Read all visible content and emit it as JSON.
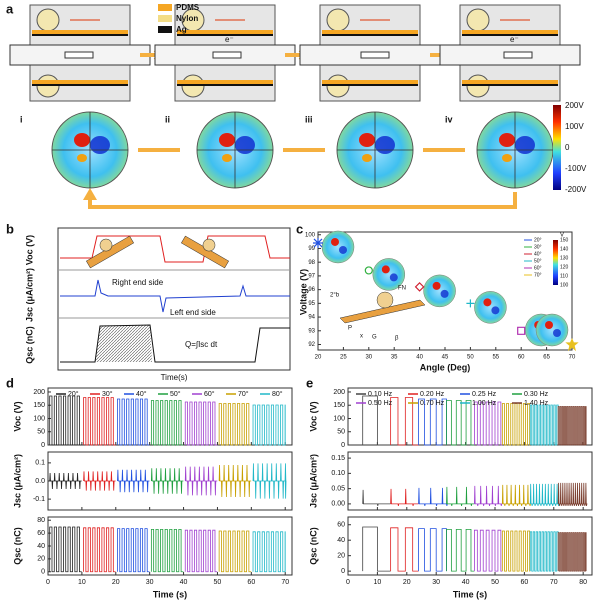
{
  "panel_a": {
    "label": "a",
    "legend": [
      {
        "name": "PDMS",
        "color": "#f5a623"
      },
      {
        "name": "Nylon",
        "color": "#f3dd86"
      },
      {
        "name": "Ag",
        "color": "#111111"
      }
    ],
    "stages": [
      "i",
      "ii",
      "iii",
      "iv"
    ],
    "electron": "e⁻",
    "colorbar": [
      "200V",
      "100V",
      "0",
      "-100V",
      "-200V"
    ]
  },
  "panel_b": {
    "label": "b",
    "ylabels": [
      "Voc (V)",
      "Jsc (μA/cm²)",
      "Qsc (nC)"
    ],
    "annotations": [
      "Right end side",
      "Left end side",
      "Q=∫Isc dt"
    ],
    "xlabel": "Time(s)"
  },
  "chart_data": [
    {
      "label": "c",
      "type": "scatter",
      "ylabel": "Voltage (V)",
      "xlabel": "Angle (Deg)",
      "x": [
        20,
        30,
        40,
        50,
        60,
        70
      ],
      "values": [
        99.4,
        97.4,
        96.2,
        95.0,
        93.0,
        92.0
      ],
      "markers": [
        "asterisk",
        "circle",
        "diamond",
        "cross",
        "square",
        "star"
      ],
      "colors": [
        "#2050e0",
        "#30b040",
        "#d02030",
        "#20b8c8",
        "#b030b0",
        "#e8c020"
      ],
      "legend": [
        "20°",
        "30°",
        "40°",
        "50°",
        "60°",
        "70°"
      ],
      "xlim": [
        20,
        70
      ],
      "ylim": [
        91.6,
        100.2
      ],
      "xticks": [
        20,
        25,
        30,
        35,
        40,
        45,
        50,
        55,
        60,
        65,
        70
      ],
      "yticks": [
        92,
        93,
        94,
        95,
        96,
        97,
        98,
        99,
        100
      ],
      "colorbar_unit": "V",
      "colorbar_ticks": [
        100,
        110,
        120,
        130,
        140,
        150
      ],
      "inset_labels": [
        "2°b",
        "FN",
        "P",
        "G",
        "x",
        "β"
      ]
    },
    {
      "label": "d",
      "type": "line",
      "xlabel": "Time (s)",
      "xlim": [
        0,
        72
      ],
      "xticks": [
        0,
        10,
        20,
        30,
        40,
        50,
        60,
        70
      ],
      "series": [
        {
          "name": "20°",
          "color": "#222222"
        },
        {
          "name": "30°",
          "color": "#e02020"
        },
        {
          "name": "40°",
          "color": "#2050e0"
        },
        {
          "name": "50°",
          "color": "#20a040"
        },
        {
          "name": "60°",
          "color": "#a040d0"
        },
        {
          "name": "70°",
          "color": "#c8a000"
        },
        {
          "name": "80°",
          "color": "#20b8c8"
        }
      ],
      "subplots": [
        {
          "ylabel": "Voc (V)",
          "ylim": [
            0,
            215
          ],
          "yticks": [
            0,
            50,
            100,
            150,
            200
          ]
        },
        {
          "ylabel": "Jsc (μA/cm²)",
          "ylim": [
            -0.16,
            0.16
          ],
          "yticks": [
            -0.1,
            {
              "value": 0,
              "label": "0.0"
            },
            0.1
          ]
        },
        {
          "ylabel": "Qsc (nC)",
          "ylim": [
            -5,
            85
          ],
          "yticks": [
            0,
            20,
            40,
            60,
            80
          ]
        }
      ]
    },
    {
      "label": "e",
      "type": "line",
      "xlabel": "Time (s)",
      "xlim": [
        0,
        83
      ],
      "xticks": [
        0,
        10,
        20,
        30,
        40,
        50,
        60,
        70,
        80
      ],
      "series": [
        {
          "name": "0.10 Hz",
          "color": "#444444"
        },
        {
          "name": "0.20 Hz",
          "color": "#e02020"
        },
        {
          "name": "0.25 Hz",
          "color": "#2050e0"
        },
        {
          "name": "0.30 Hz",
          "color": "#20a040"
        },
        {
          "name": "0.50 Hz",
          "color": "#a040d0"
        },
        {
          "name": "0.70 Hz",
          "color": "#c8a000"
        },
        {
          "name": "1.00 Hz",
          "color": "#20b8c8"
        },
        {
          "name": "1.40 Hz",
          "color": "#7b3f2f"
        }
      ],
      "subplots": [
        {
          "ylabel": "Voc (V)",
          "ylim": [
            0,
            215
          ],
          "yticks": [
            0,
            50,
            100,
            150,
            200
          ]
        },
        {
          "ylabel": "Jsc (μA/cm²)",
          "ylim": [
            -0.02,
            0.17
          ],
          "yticks": [
            {
              "value": 0,
              "label": "0.00"
            },
            {
              "value": 0.05,
              "label": "0.05"
            },
            {
              "value": 0.1,
              "label": "0.10"
            },
            {
              "value": 0.15,
              "label": "0.15"
            }
          ]
        },
        {
          "ylabel": "Qsc (nC)",
          "ylim": [
            -5,
            70
          ],
          "yticks": [
            0,
            20,
            40,
            60
          ]
        }
      ]
    }
  ]
}
